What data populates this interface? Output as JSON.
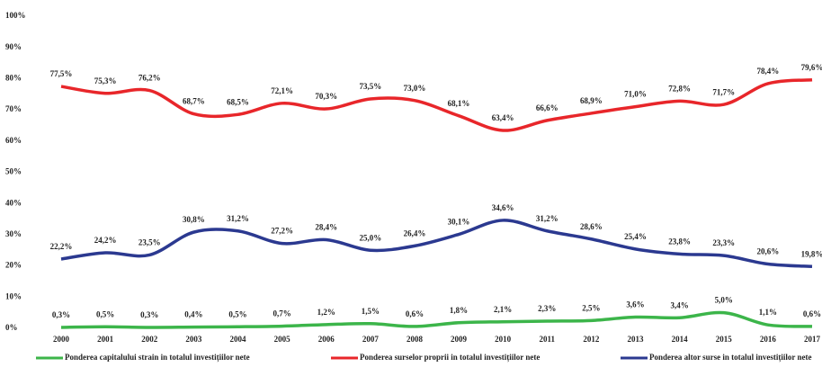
{
  "chart_data": {
    "type": "line",
    "categories": [
      "2000",
      "2001",
      "2002",
      "2003",
      "2004",
      "2005",
      "2006",
      "2007",
      "2008",
      "2009",
      "2010",
      "2011",
      "2012",
      "2013",
      "2014",
      "2015",
      "2016",
      "2017"
    ],
    "ylim": [
      0,
      100
    ],
    "yticks": [
      {
        "value": 0,
        "label": "0%"
      },
      {
        "value": 10,
        "label": "10%"
      },
      {
        "value": 20,
        "label": "20%"
      },
      {
        "value": 30,
        "label": "30%"
      },
      {
        "value": 40,
        "label": "40%"
      },
      {
        "value": 50,
        "label": "50%"
      },
      {
        "value": 60,
        "label": "60%"
      },
      {
        "value": 70,
        "label": "70%"
      },
      {
        "value": 80,
        "label": "80%"
      },
      {
        "value": 90,
        "label": "90%"
      },
      {
        "value": 100,
        "label": "100%"
      }
    ],
    "legend": "bottom",
    "series": [
      {
        "name": "Ponderea capitalului strain in totalul investițiilor nete",
        "color": "#3cb54a",
        "values": [
          0.3,
          0.5,
          0.3,
          0.4,
          0.5,
          0.7,
          1.2,
          1.5,
          0.6,
          1.8,
          2.1,
          2.3,
          2.5,
          3.6,
          3.4,
          5.0,
          1.1,
          0.6
        ],
        "value_labels": [
          "0,3%",
          "0,5%",
          "0,3%",
          "0,4%",
          "0,5%",
          "0,7%",
          "1,2%",
          "1,5%",
          "0,6%",
          "1,8%",
          "2,1%",
          "2,3%",
          "2,5%",
          "3,6%",
          "3,4%",
          "5,0%",
          "1,1%",
          "0,6%"
        ]
      },
      {
        "name": "Ponderea surselor proprii in totalul investițiilor nete",
        "color": "#e8262a",
        "values": [
          77.5,
          75.3,
          76.2,
          68.7,
          68.5,
          72.1,
          70.3,
          73.5,
          73.0,
          68.1,
          63.4,
          66.6,
          68.9,
          71.0,
          72.8,
          71.7,
          78.4,
          79.6
        ],
        "value_labels": [
          "77,5%",
          "75,3%",
          "76,2%",
          "68,7%",
          "68,5%",
          "72,1%",
          "70,3%",
          "73,5%",
          "73,0%",
          "68,1%",
          "63,4%",
          "66,6%",
          "68,9%",
          "71,0%",
          "72,8%",
          "71,7%",
          "78,4%",
          "79,6%"
        ]
      },
      {
        "name": "Ponderea altor surse in totalul investițiilor nete",
        "color": "#2b3990",
        "values": [
          22.2,
          24.2,
          23.5,
          30.8,
          31.2,
          27.2,
          28.4,
          25.0,
          26.4,
          30.1,
          34.6,
          31.2,
          28.6,
          25.4,
          23.8,
          23.3,
          20.6,
          19.8
        ],
        "value_labels": [
          "22,2%",
          "24,2%",
          "23,5%",
          "30,8%",
          "31,2%",
          "27,2%",
          "28,4%",
          "25,0%",
          "26,4%",
          "30,1%",
          "34,6%",
          "31,2%",
          "28,6%",
          "25,4%",
          "23,8%",
          "23,3%",
          "20,6%",
          "19,8%"
        ]
      }
    ]
  }
}
